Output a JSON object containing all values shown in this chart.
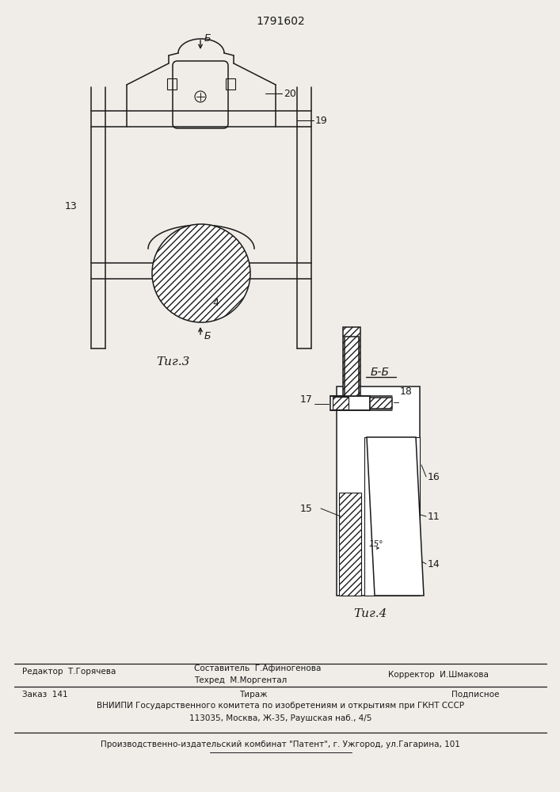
{
  "title": "1791602",
  "bg_color": "#f0ede8",
  "line_color": "#1a1a1a",
  "fig3_caption": "Τиг.3",
  "fig4_caption": "Τиг.4",
  "section_label": "Б-Б",
  "label_B_top": "Б",
  "label_B_bot": "Б",
  "label_4": "4",
  "label_13": "13",
  "label_19": "19",
  "label_20": "20",
  "label_11": "11",
  "label_14": "14",
  "label_15": "15",
  "label_15deg": "15°",
  "label_16": "16",
  "label_17": "17",
  "label_18": "18",
  "editor": "Редактор  Т.Горячева",
  "compiler": "Составитель  Г.Афиногенова",
  "techred": "Техред  М.Моргентал",
  "corrector": "Корректор  И.Шмакова",
  "order": "Заказ  141",
  "tirazh": "Тираж",
  "podpisnoe": "Подписное",
  "vniiipi": "ВНИИПИ Государственного комитета по изобретениям и открытиям при ГКНТ СССР",
  "address": "113035, Москва, Ж-35, Раушская наб., 4/5",
  "patent": "Производственно-издательский комбинат \"Патент\", г. Ужгород, ул.Гагарина, 101"
}
